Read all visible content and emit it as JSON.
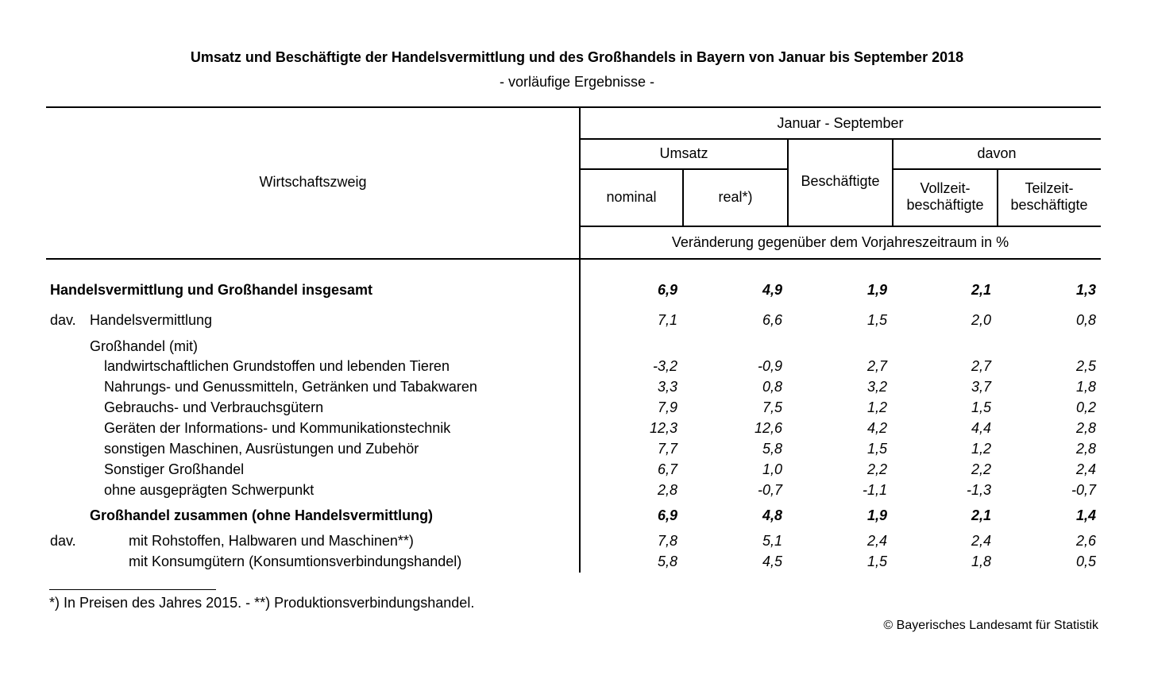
{
  "title": "Umsatz und Beschäftigte der Handelsvermittlung und des Großhandels in Bayern von Januar bis September 2018",
  "subtitle": "- vorläufige Ergebnisse -",
  "header": {
    "row_label": "Wirtschaftszweig",
    "period": "Januar - September",
    "umsatz": "Umsatz",
    "nominal": "nominal",
    "real": "real*)",
    "beschaeftigte": "Beschäftigte",
    "davon": "davon",
    "vollzeit_1": "Vollzeit-",
    "vollzeit_2": "beschäftigte",
    "teilzeit_1": "Teilzeit-",
    "teilzeit_2": "beschäftigte",
    "unit": "Veränderung gegenüber dem Vorjahreszeitraum in %"
  },
  "rows": [
    {
      "prefix": "",
      "label": "Handelsvermittlung und Großhandel insgesamt",
      "bold": true,
      "values": [
        "6,9",
        "4,9",
        "1,9",
        "2,1",
        "1,3"
      ]
    },
    {
      "prefix": "dav.",
      "label": "Handelsvermittlung",
      "bold": false,
      "values": [
        "7,1",
        "6,6",
        "1,5",
        "2,0",
        "0,8"
      ]
    },
    {
      "prefix": "",
      "label": "Großhandel (mit)",
      "bold": false,
      "values": [
        "",
        "",
        "",
        "",
        ""
      ]
    },
    {
      "prefix": "",
      "label": "landwirtschaftlichen Grundstoffen und lebenden Tieren",
      "bold": false,
      "values": [
        "-3,2",
        "-0,9",
        "2,7",
        "2,7",
        "2,5"
      ]
    },
    {
      "prefix": "",
      "label": "Nahrungs- und Genussmitteln, Getränken und Tabakwaren",
      "bold": false,
      "values": [
        "3,3",
        "0,8",
        "3,2",
        "3,7",
        "1,8"
      ]
    },
    {
      "prefix": "",
      "label": "Gebrauchs- und Verbrauchsgütern",
      "bold": false,
      "values": [
        "7,9",
        "7,5",
        "1,2",
        "1,5",
        "0,2"
      ]
    },
    {
      "prefix": "",
      "label": "Geräten der Informations- und Kommunikationstechnik",
      "bold": false,
      "values": [
        "12,3",
        "12,6",
        "4,2",
        "4,4",
        "2,8"
      ]
    },
    {
      "prefix": "",
      "label": "sonstigen Maschinen, Ausrüstungen und Zubehör",
      "bold": false,
      "values": [
        "7,7",
        "5,8",
        "1,5",
        "1,2",
        "2,8"
      ]
    },
    {
      "prefix": "",
      "label": "Sonstiger Großhandel",
      "bold": false,
      "values": [
        "6,7",
        "1,0",
        "2,2",
        "2,2",
        "2,4"
      ]
    },
    {
      "prefix": "",
      "label": "ohne ausgeprägten Schwerpunkt",
      "bold": false,
      "values": [
        "2,8",
        "-0,7",
        "-1,1",
        "-1,3",
        "-0,7"
      ]
    },
    {
      "prefix": "",
      "label": "Großhandel zusammen (ohne Handelsvermittlung)",
      "bold": true,
      "values": [
        "6,9",
        "4,8",
        "1,9",
        "2,1",
        "1,4"
      ]
    },
    {
      "prefix": "dav.",
      "label": "mit Rohstoffen, Halbwaren und Maschinen**)",
      "bold": false,
      "values": [
        "7,8",
        "5,1",
        "2,4",
        "2,4",
        "2,6"
      ]
    },
    {
      "prefix": "",
      "label": "mit Konsumgütern (Konsumtionsverbindungshandel)",
      "bold": false,
      "values": [
        "5,8",
        "4,5",
        "1,5",
        "1,8",
        "0,5"
      ]
    }
  ],
  "footnote": "*) In Preisen des Jahres 2015. - **) Produktionsverbindungshandel.",
  "copyright": "© Bayerisches Landesamt für Statistik"
}
